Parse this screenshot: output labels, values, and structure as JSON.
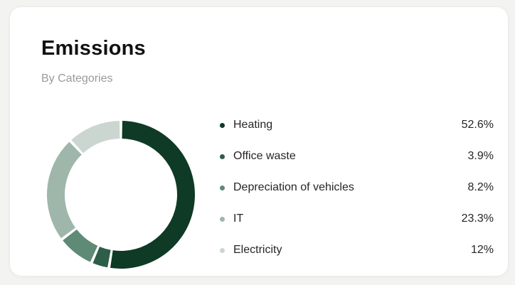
{
  "card": {
    "title": "Emissions",
    "subtitle": "By Categories"
  },
  "chart_data": {
    "type": "pie",
    "variant": "donut",
    "title": "Emissions",
    "subtitle": "By Categories",
    "legend_position": "right",
    "categories": [
      "Heating",
      "Office waste",
      "Depreciation of vehicles",
      "IT",
      "Electricity"
    ],
    "values": [
      52.6,
      3.9,
      8.2,
      23.3,
      12
    ],
    "value_labels": [
      "52.6%",
      "3.9%",
      "8.2%",
      "23.3%",
      "12%"
    ],
    "unit": "%",
    "colors": [
      "#0e3a26",
      "#2c5e48",
      "#5f8a76",
      "#9fb7aa",
      "#ccd6d1"
    ]
  }
}
